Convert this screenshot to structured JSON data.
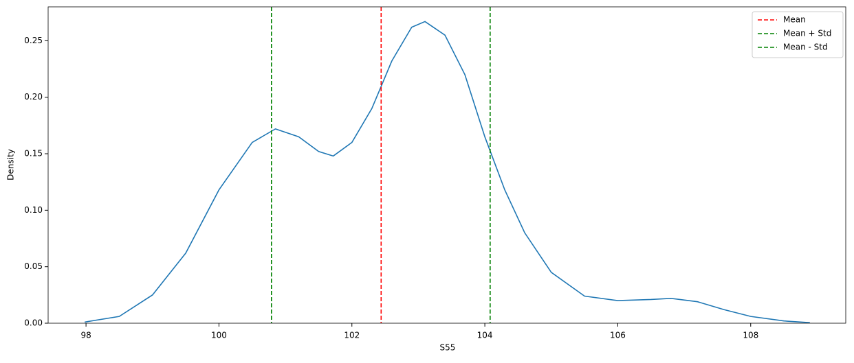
{
  "chart_data": {
    "type": "kde",
    "x_label": "S55",
    "y_label": "Density",
    "xlim": [
      97.43,
      109.43
    ],
    "ylim": [
      0,
      0.28
    ],
    "xticks": [
      98,
      100,
      102,
      104,
      106,
      108
    ],
    "yticks": [
      {
        "value": 0,
        "label": "0.00"
      },
      {
        "value": 0.05,
        "label": "0.05"
      },
      {
        "value": 0.1,
        "label": "0.10"
      },
      {
        "value": 0.15,
        "label": "0.15"
      },
      {
        "value": 0.2,
        "label": "0.20"
      },
      {
        "value": 0.25,
        "label": "0.25"
      }
    ],
    "legend": "upper right",
    "x": [
      97.98,
      98.5,
      99,
      99.5,
      100,
      100.5,
      100.85,
      101.2,
      101.5,
      101.72,
      102,
      102.3,
      102.6,
      102.9,
      103.1,
      103.4,
      103.7,
      104,
      104.3,
      104.6,
      105,
      105.5,
      106,
      106.5,
      106.8,
      107.2,
      107.6,
      108,
      108.5,
      108.89
    ],
    "series": [
      {
        "color": "#1f77b4",
        "values": [
          0.001,
          0.006,
          0.025,
          0.062,
          0.118,
          0.16,
          0.172,
          0.165,
          0.152,
          0.148,
          0.16,
          0.19,
          0.232,
          0.262,
          0.267,
          0.255,
          0.22,
          0.165,
          0.118,
          0.08,
          0.045,
          0.024,
          0.02,
          0.021,
          0.022,
          0.019,
          0.012,
          0.006,
          0.002,
          0.0005
        ]
      }
    ],
    "vlines": [
      {
        "name": "Mean",
        "color": "#ff0000",
        "x": 102.44
      },
      {
        "name": "Mean + Std",
        "color": "#008000",
        "x": 104.08
      },
      {
        "name": "Mean - Std",
        "color": "#008000",
        "x": 100.79
      }
    ]
  }
}
